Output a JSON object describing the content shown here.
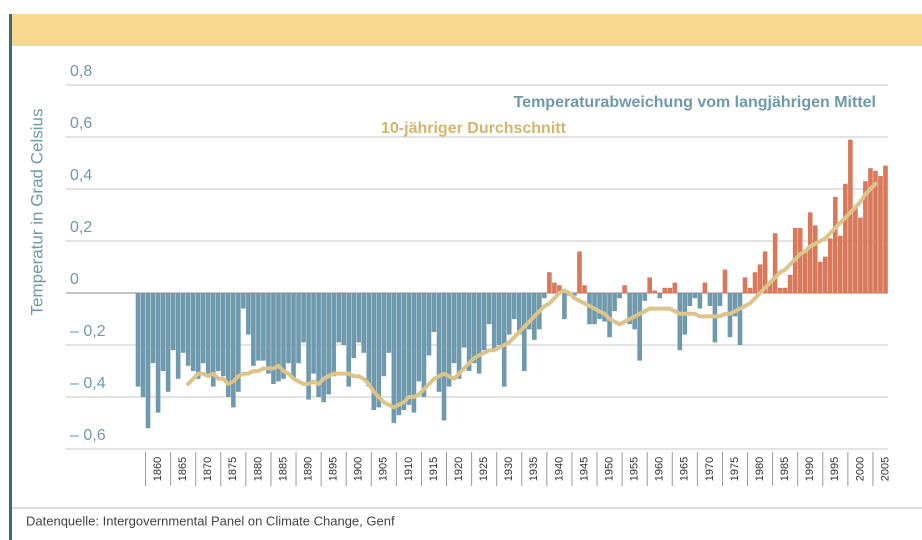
{
  "chart_data": {
    "type": "bar",
    "ylabel": "Temperatur in Grad Celsius",
    "source": "Datenquelle: Intergovernmental Panel on Climate Change, Genf",
    "x": [
      1856,
      1857,
      1858,
      1859,
      1860,
      1861,
      1862,
      1863,
      1864,
      1865,
      1866,
      1867,
      1868,
      1869,
      1870,
      1871,
      1872,
      1873,
      1874,
      1875,
      1876,
      1877,
      1878,
      1879,
      1880,
      1881,
      1882,
      1883,
      1884,
      1885,
      1886,
      1887,
      1888,
      1889,
      1890,
      1891,
      1892,
      1893,
      1894,
      1895,
      1896,
      1897,
      1898,
      1899,
      1900,
      1901,
      1902,
      1903,
      1904,
      1905,
      1906,
      1907,
      1908,
      1909,
      1910,
      1911,
      1912,
      1913,
      1914,
      1915,
      1916,
      1917,
      1918,
      1919,
      1920,
      1921,
      1922,
      1923,
      1924,
      1925,
      1926,
      1927,
      1928,
      1929,
      1930,
      1931,
      1932,
      1933,
      1934,
      1935,
      1936,
      1937,
      1938,
      1939,
      1940,
      1941,
      1942,
      1943,
      1944,
      1945,
      1946,
      1947,
      1948,
      1949,
      1950,
      1951,
      1952,
      1953,
      1954,
      1955,
      1956,
      1957,
      1958,
      1959,
      1960,
      1961,
      1962,
      1963,
      1964,
      1965,
      1966,
      1967,
      1968,
      1969,
      1970,
      1971,
      1972,
      1973,
      1974,
      1975,
      1976,
      1977,
      1978,
      1979,
      1980,
      1981,
      1982,
      1983,
      1984,
      1985,
      1986,
      1987,
      1988,
      1989,
      1990,
      1991,
      1992,
      1993,
      1994,
      1995,
      1996,
      1997,
      1998,
      1999,
      2000,
      2001,
      2002,
      2003,
      2004,
      2005
    ],
    "xlim": [
      1855.5,
      2005.5
    ],
    "xticks": [
      1860,
      1865,
      1870,
      1875,
      1880,
      1885,
      1890,
      1895,
      1900,
      1905,
      1910,
      1915,
      1920,
      1925,
      1930,
      1935,
      1940,
      1945,
      1950,
      1955,
      1960,
      1965,
      1970,
      1975,
      1980,
      1985,
      1990,
      1995,
      2000,
      2005
    ],
    "ylim": [
      -0.6,
      0.8
    ],
    "yticks": [
      {
        "value": 0.8,
        "label": "0,8"
      },
      {
        "value": 0.6,
        "label": "0,6"
      },
      {
        "value": 0.4,
        "label": "0,4"
      },
      {
        "value": 0.2,
        "label": "0,2"
      },
      0,
      {
        "value": -0.2,
        "label": "– 0,2"
      },
      {
        "value": -0.4,
        "label": "– 0,4"
      },
      {
        "value": -0.6,
        "label": "– 0,6"
      }
    ],
    "grid": true,
    "series": [
      {
        "name": "Temperaturabweichung vom langjährigen Mittel",
        "color": "#6f99ad",
        "positive_color": "#d9795c",
        "values": [
          -0.36,
          -0.4,
          -0.52,
          -0.27,
          -0.46,
          -0.3,
          -0.38,
          -0.22,
          -0.33,
          -0.23,
          -0.28,
          -0.3,
          -0.33,
          -0.27,
          -0.31,
          -0.36,
          -0.3,
          -0.32,
          -0.4,
          -0.44,
          -0.38,
          -0.06,
          -0.16,
          -0.28,
          -0.26,
          -0.26,
          -0.31,
          -0.35,
          -0.34,
          -0.33,
          -0.27,
          -0.33,
          -0.27,
          -0.19,
          -0.41,
          -0.31,
          -0.4,
          -0.42,
          -0.39,
          -0.32,
          -0.19,
          -0.2,
          -0.36,
          -0.25,
          -0.19,
          -0.23,
          -0.36,
          -0.45,
          -0.44,
          -0.32,
          -0.23,
          -0.5,
          -0.47,
          -0.45,
          -0.43,
          -0.46,
          -0.34,
          -0.4,
          -0.24,
          -0.15,
          -0.38,
          -0.49,
          -0.36,
          -0.27,
          -0.33,
          -0.21,
          -0.3,
          -0.27,
          -0.31,
          -0.22,
          -0.12,
          -0.22,
          -0.2,
          -0.36,
          -0.16,
          -0.1,
          -0.16,
          -0.3,
          -0.14,
          -0.18,
          -0.14,
          -0.02,
          0.08,
          0.04,
          0.03,
          -0.1,
          -0.01,
          -0.01,
          0.16,
          0.03,
          -0.12,
          -0.12,
          -0.1,
          -0.11,
          -0.17,
          -0.07,
          -0.02,
          0.03,
          -0.12,
          -0.14,
          -0.26,
          -0.03,
          0.06,
          0.01,
          -0.02,
          0.02,
          0.02,
          0.04,
          -0.22,
          -0.16,
          -0.05,
          -0.02,
          -0.06,
          0.04,
          -0.05,
          -0.19,
          -0.05,
          0.09,
          -0.17,
          -0.09,
          -0.2,
          0.06,
          0.02,
          0.08,
          0.11,
          0.16,
          0.04,
          0.23,
          0.02,
          0.02,
          0.07,
          0.25,
          0.25,
          0.16,
          0.31,
          0.26,
          0.12,
          0.14,
          0.21,
          0.37,
          0.22,
          0.42,
          0.59,
          0.33,
          0.29,
          0.43,
          0.48,
          0.47,
          0.45,
          0.49
        ]
      },
      {
        "name": "10-jähriger Durchschnitt",
        "color": "#dcc48a",
        "type": "line",
        "values": [
          null,
          null,
          null,
          null,
          null,
          null,
          null,
          null,
          null,
          null,
          -0.35,
          -0.33,
          -0.31,
          -0.31,
          -0.32,
          -0.31,
          -0.33,
          -0.33,
          -0.35,
          -0.34,
          -0.32,
          -0.31,
          -0.31,
          -0.3,
          -0.3,
          -0.29,
          -0.29,
          -0.29,
          -0.28,
          -0.3,
          -0.31,
          -0.33,
          -0.34,
          -0.35,
          -0.35,
          -0.34,
          -0.35,
          -0.33,
          -0.32,
          -0.31,
          -0.31,
          -0.31,
          -0.31,
          -0.32,
          -0.32,
          -0.33,
          -0.35,
          -0.38,
          -0.4,
          -0.42,
          -0.43,
          -0.44,
          -0.43,
          -0.42,
          -0.4,
          -0.4,
          -0.39,
          -0.37,
          -0.35,
          -0.33,
          -0.32,
          -0.31,
          -0.32,
          -0.33,
          -0.31,
          -0.29,
          -0.27,
          -0.25,
          -0.24,
          -0.23,
          -0.22,
          -0.22,
          -0.21,
          -0.2,
          -0.19,
          -0.17,
          -0.15,
          -0.13,
          -0.11,
          -0.09,
          -0.07,
          -0.05,
          -0.04,
          -0.02,
          0.0,
          0.01,
          0.0,
          -0.02,
          -0.03,
          -0.04,
          -0.05,
          -0.06,
          -0.07,
          -0.08,
          -0.1,
          -0.11,
          -0.12,
          -0.11,
          -0.1,
          -0.09,
          -0.08,
          -0.07,
          -0.06,
          -0.06,
          -0.06,
          -0.06,
          -0.06,
          -0.07,
          -0.08,
          -0.08,
          -0.08,
          -0.08,
          -0.09,
          -0.09,
          -0.09,
          -0.09,
          -0.09,
          -0.08,
          -0.08,
          -0.07,
          -0.06,
          -0.05,
          -0.04,
          -0.02,
          0.0,
          0.02,
          0.04,
          0.06,
          0.08,
          0.09,
          0.11,
          0.13,
          0.15,
          0.16,
          0.18,
          0.19,
          0.2,
          0.21,
          0.23,
          0.25,
          0.27,
          0.29,
          0.31,
          0.33,
          0.35,
          0.38,
          0.4,
          0.42,
          null,
          null
        ]
      }
    ]
  }
}
